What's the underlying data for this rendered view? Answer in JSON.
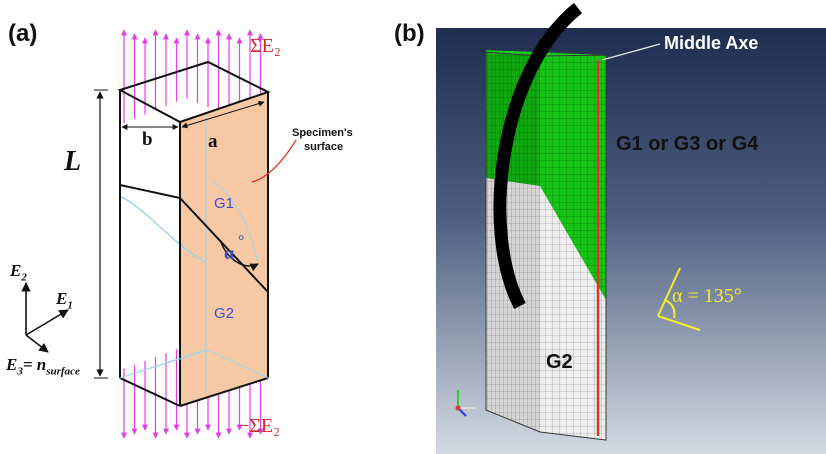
{
  "panel_a": {
    "label": "(a)",
    "stress_top": "ΣE₂",
    "stress_bottom": "−ΣE₂",
    "length_label": "L",
    "width_b": "b",
    "width_a": "a",
    "surface_label_line1": "Specimen's",
    "surface_label_line2": "surface",
    "grain_top": "G1",
    "grain_bottom": "G2",
    "angle_symbol": "α",
    "angle_degree": "°",
    "axes": {
      "e2": "E",
      "e2_sub": "2",
      "e1": "E",
      "e1_sub": "1",
      "e3": "E",
      "e3_sub": "3",
      "e3_eq": "= n",
      "e3_eq_sub": "surface"
    },
    "colors": {
      "surface_fill": "#f6c9a4",
      "arrows": "#e23ce6",
      "stress_text": "#d62b2b",
      "grain_text": "#3a4fd0",
      "boundary_blue": "#8fd0e6"
    }
  },
  "panel_b": {
    "label": "(b)",
    "middle_axe": "Middle Axe",
    "top_grain": "G1 or G3 or G4",
    "bottom_grain": "G2",
    "angle_text": "α = 135°",
    "colors": {
      "background_top": "#1f2d4f",
      "background_bottom": "#c7ced9",
      "mesh_green": "#16c416",
      "mesh_grey": "#e4e4e4",
      "axe_red": "#e2322a",
      "angle_yellow": "#f2ee2b"
    }
  }
}
